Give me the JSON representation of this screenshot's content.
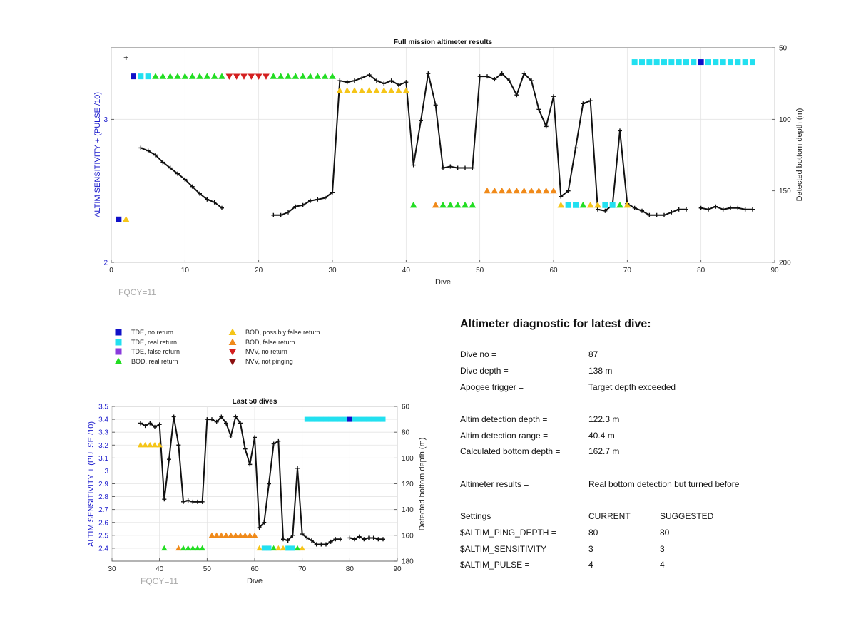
{
  "top_chart": {
    "title": "Full mission altimeter results",
    "xlabel": "Dive",
    "ylabel_left": "ALTIM SENSITIVITY + (PULSE /10)",
    "ylabel_right": "Detected bottom depth (m)",
    "fqcy": "FQCY=11",
    "x_ticks": [
      "0",
      "10",
      "20",
      "30",
      "40",
      "50",
      "60",
      "70",
      "80",
      "90"
    ],
    "yl_ticks": [
      "2",
      "3"
    ],
    "yr_ticks": [
      "50",
      "100",
      "150",
      "200"
    ]
  },
  "bottom_chart": {
    "title": "Last 50 dives",
    "xlabel": "Dive",
    "ylabel_left": "ALTIM SENSITIVITY + (PULSE /10)",
    "ylabel_right": "Detected bottom depth (m)",
    "fqcy": "FQCY=11",
    "x_ticks": [
      "30",
      "40",
      "50",
      "60",
      "70",
      "80",
      "90"
    ],
    "yl_ticks": [
      "2.4",
      "2.5",
      "2.6",
      "2.7",
      "2.8",
      "2.9",
      "3",
      "3.1",
      "3.2",
      "3.3",
      "3.4",
      "3.5"
    ],
    "yr_ticks": [
      "60",
      "80",
      "100",
      "120",
      "140",
      "160",
      "180"
    ]
  },
  "legend": [
    {
      "label": "TDE, no return",
      "shape": "square",
      "color": "#1010c8"
    },
    {
      "label": "TDE, real return",
      "shape": "square",
      "color": "#22e0f0"
    },
    {
      "label": "TDE, false return",
      "shape": "square",
      "color": "#8a3adc"
    },
    {
      "label": "BOD, real return",
      "shape": "tri-up",
      "color": "#22dd22"
    },
    {
      "label": "BOD, possibly false return",
      "shape": "tri-up",
      "color": "#f5c518"
    },
    {
      "label": "BOD, false return",
      "shape": "tri-up",
      "color": "#f08a1a"
    },
    {
      "label": "NVV, no return",
      "shape": "tri-down",
      "color": "#d42020"
    },
    {
      "label": "NVV, not pinging",
      "shape": "tri-down",
      "color": "#8b1010"
    }
  ],
  "diagnostic": {
    "title": "Altimeter diagnostic for latest dive:",
    "dive_no_label": "Dive no =",
    "dive_no": "87",
    "dive_depth_label": "Dive depth =",
    "dive_depth": "138 m",
    "apogee_label": "Apogee trigger =",
    "apogee": "Target depth exceeded",
    "altim_depth_label": "Altim detection depth =",
    "altim_depth": "122.3 m",
    "altim_range_label": "Altim detection range =",
    "altim_range": "40.4 m",
    "calc_depth_label": "Calculated bottom depth =",
    "calc_depth": "162.7 m",
    "results_label": "Altimeter results =",
    "results": "Real bottom detection but turned before",
    "settings_label": "Settings",
    "current_label": "CURRENT",
    "suggested_label": "SUGGESTED",
    "ping_depth_label": "$ALTIM_PING_DEPTH =",
    "ping_depth_current": "80",
    "ping_depth_suggested": "80",
    "sensitivity_label": "$ALTIM_SENSITIVITY =",
    "sensitivity_current": "3",
    "sensitivity_suggested": "3",
    "pulse_label": "$ALTIM_PULSE =",
    "pulse_current": "4",
    "pulse_suggested": "4"
  },
  "chart_data": [
    {
      "type": "line",
      "title": "Full mission altimeter results",
      "xlabel": "Dive",
      "xlim": [
        0,
        90
      ],
      "ylabel_left": "ALTIM SENSITIVITY + (PULSE /10)",
      "ylim_left": [
        2,
        3.5
      ],
      "ylabel_right": "Detected bottom depth (m)",
      "ylim_right": [
        200,
        50
      ],
      "grid": true,
      "bottom_depth_segments": [
        [
          [
            2,
            57
          ]
        ],
        [
          [
            4,
            120
          ],
          [
            5,
            122
          ],
          [
            6,
            125
          ],
          [
            7,
            130
          ],
          [
            8,
            134
          ],
          [
            9,
            138
          ],
          [
            10,
            142
          ],
          [
            11,
            147
          ],
          [
            12,
            152
          ],
          [
            13,
            156
          ],
          [
            14,
            158
          ],
          [
            15,
            162
          ]
        ],
        [
          [
            22,
            167
          ],
          [
            23,
            167
          ],
          [
            24,
            165
          ],
          [
            25,
            161
          ],
          [
            26,
            160
          ],
          [
            27,
            157
          ],
          [
            28,
            156
          ],
          [
            29,
            155
          ],
          [
            30,
            151
          ],
          [
            31,
            73
          ],
          [
            32,
            74
          ],
          [
            33,
            73
          ],
          [
            34,
            71
          ],
          [
            35,
            69
          ],
          [
            36,
            73
          ],
          [
            37,
            75
          ],
          [
            38,
            73
          ],
          [
            39,
            76
          ],
          [
            40,
            74
          ],
          [
            41,
            132
          ],
          [
            42,
            101
          ],
          [
            43,
            68
          ],
          [
            44,
            90
          ],
          [
            45,
            134
          ],
          [
            46,
            133
          ],
          [
            47,
            134
          ],
          [
            48,
            134
          ],
          [
            49,
            134
          ],
          [
            50,
            70
          ],
          [
            51,
            70
          ],
          [
            52,
            72
          ],
          [
            53,
            68
          ],
          [
            54,
            73
          ],
          [
            55,
            83
          ],
          [
            56,
            68
          ],
          [
            57,
            73
          ],
          [
            58,
            93
          ],
          [
            59,
            105
          ],
          [
            60,
            84
          ],
          [
            61,
            154
          ],
          [
            62,
            150
          ],
          [
            63,
            120
          ],
          [
            64,
            89
          ],
          [
            65,
            87
          ],
          [
            66,
            163
          ],
          [
            67,
            164
          ],
          [
            68,
            160
          ],
          [
            69,
            108
          ],
          [
            70,
            159
          ],
          [
            71,
            162
          ],
          [
            72,
            164
          ],
          [
            73,
            167
          ],
          [
            74,
            167
          ],
          [
            75,
            167
          ],
          [
            76,
            165
          ],
          [
            77,
            163
          ],
          [
            78,
            163
          ]
        ],
        [
          [
            80,
            162
          ],
          [
            81,
            163
          ],
          [
            82,
            161
          ],
          [
            83,
            163
          ],
          [
            84,
            162
          ],
          [
            85,
            162
          ],
          [
            86,
            163
          ],
          [
            87,
            163
          ]
        ]
      ],
      "markers": [
        {
          "x": 1,
          "y": 2.3,
          "status": "TDE, no return"
        },
        {
          "x": 2,
          "y": 2.3,
          "status": "BOD, possibly false return"
        },
        {
          "x": 3,
          "y": 3.3,
          "status": "TDE, no return"
        },
        {
          "x_range": [
            4,
            5
          ],
          "y": 3.3,
          "status": "TDE, real return"
        },
        {
          "x_range": [
            6,
            15
          ],
          "y": 3.3,
          "status": "BOD, real return"
        },
        {
          "x_range": [
            16,
            21
          ],
          "y": 3.3,
          "status": "NVV, no return"
        },
        {
          "x_range": [
            22,
            30
          ],
          "y": 3.3,
          "status": "BOD, real return"
        },
        {
          "x_range": [
            31,
            40
          ],
          "y": 3.2,
          "status": "BOD, possibly false return"
        },
        {
          "x": 41,
          "y": 2.4,
          "status": "BOD, real return"
        },
        {
          "x": 44,
          "y": 2.4,
          "status": "BOD, false return"
        },
        {
          "x_range": [
            45,
            49
          ],
          "y": 2.4,
          "status": "BOD, real return"
        },
        {
          "x_range": [
            51,
            60
          ],
          "y": 2.5,
          "status": "BOD, false return"
        },
        {
          "x": 61,
          "y": 2.4,
          "status": "BOD, possibly false return"
        },
        {
          "x_range": [
            62,
            63
          ],
          "y": 2.4,
          "status": "TDE, real return"
        },
        {
          "x": 64,
          "y": 2.4,
          "status": "BOD, real return"
        },
        {
          "x_range": [
            65,
            66
          ],
          "y": 2.4,
          "status": "BOD, possibly false return"
        },
        {
          "x_range": [
            67,
            68
          ],
          "y": 2.4,
          "status": "TDE, real return"
        },
        {
          "x": 69,
          "y": 2.4,
          "status": "BOD, real return"
        },
        {
          "x": 70,
          "y": 2.4,
          "status": "BOD, possibly false return"
        },
        {
          "x_range": [
            71,
            79
          ],
          "y": 3.4,
          "status": "TDE, real return"
        },
        {
          "x": 80,
          "y": 3.4,
          "status": "TDE, no return"
        },
        {
          "x_range": [
            81,
            87
          ],
          "y": 3.4,
          "status": "TDE, real return"
        }
      ]
    },
    {
      "type": "line",
      "title": "Last 50 dives",
      "xlabel": "Dive",
      "xlim": [
        30,
        90
      ],
      "ylabel_left": "ALTIM SENSITIVITY + (PULSE /10)",
      "ylim_left": [
        2.3,
        3.5
      ],
      "ylabel_right": "Detected bottom depth (m)",
      "ylim_right": [
        180,
        60
      ],
      "grid": true,
      "range_dives": [
        36,
        87
      ]
    }
  ]
}
